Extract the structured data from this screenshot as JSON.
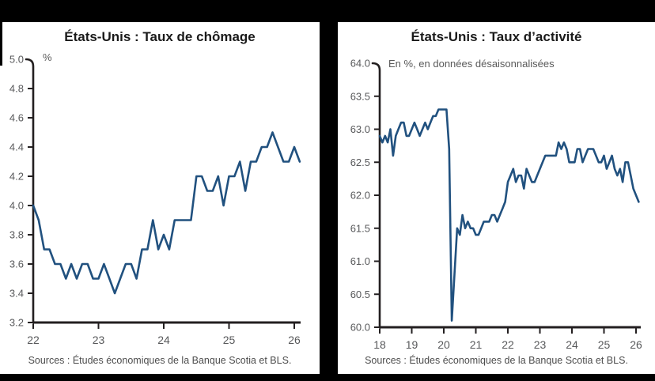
{
  "window": {
    "background": "#000000",
    "panel_background": "#ffffff",
    "axis_color": "#231f20",
    "label_color": "#58595b"
  },
  "chart_data": [
    {
      "type": "line",
      "title": "États-Unis : Taux de chômage",
      "subtitle": "%",
      "source": "Sources : Études économiques de la Banque Scotia et BLS.",
      "line_color": "#21517f",
      "grid": false,
      "legend": null,
      "ylim": [
        3.2,
        5.0
      ],
      "y_tick_labels": [
        "5.0",
        "4.8",
        "4.6",
        "4.4",
        "4.2",
        "4.0",
        "3.8",
        "3.6",
        "3.4",
        "3.2"
      ],
      "x_tick_labels": [
        "22",
        "23",
        "24",
        "25",
        "26"
      ],
      "frequency": "monthly",
      "start": "2022-01",
      "values": [
        4.0,
        3.9,
        3.7,
        3.7,
        3.6,
        3.6,
        3.5,
        3.6,
        3.5,
        3.6,
        3.6,
        3.5,
        3.5,
        3.6,
        3.5,
        3.4,
        3.5,
        3.6,
        3.6,
        3.5,
        3.7,
        3.7,
        3.9,
        3.7,
        3.8,
        3.7,
        3.9,
        3.9,
        3.9,
        3.9,
        4.2,
        4.2,
        4.1,
        4.1,
        4.2,
        4.0,
        4.2,
        4.2,
        4.3,
        4.1,
        4.3,
        4.3,
        4.4,
        4.4,
        4.5,
        4.4,
        4.3,
        4.3,
        4.4,
        4.3
      ]
    },
    {
      "type": "line",
      "title": "États-Unis : Taux d’activité",
      "subtitle": "En %, en données désaisonnalisées",
      "source": "Sources : Études économiques de la Banque Scotia et BLS.",
      "line_color": "#21517f",
      "grid": false,
      "legend": null,
      "ylim": [
        60.0,
        64.0
      ],
      "y_tick_labels": [
        "64.0",
        "63.5",
        "63.0",
        "62.5",
        "62.0",
        "61.5",
        "61.0",
        "60.5",
        "60.0"
      ],
      "x_tick_labels": [
        "18",
        "19",
        "20",
        "21",
        "22",
        "23",
        "24",
        "25",
        "26"
      ],
      "frequency": "monthly",
      "start": "2018-01",
      "values": [
        62.9,
        62.8,
        62.9,
        62.8,
        63.0,
        62.6,
        62.9,
        63.0,
        63.1,
        63.1,
        62.9,
        62.9,
        63.0,
        63.1,
        63.0,
        62.9,
        63.0,
        63.1,
        63.0,
        63.1,
        63.2,
        63.2,
        63.3,
        63.3,
        63.3,
        63.3,
        62.7,
        60.1,
        60.8,
        61.5,
        61.4,
        61.7,
        61.5,
        61.6,
        61.5,
        61.5,
        61.4,
        61.4,
        61.5,
        61.6,
        61.6,
        61.6,
        61.7,
        61.7,
        61.6,
        61.7,
        61.8,
        61.9,
        62.2,
        62.3,
        62.4,
        62.2,
        62.3,
        62.3,
        62.1,
        62.4,
        62.3,
        62.2,
        62.2,
        62.3,
        62.4,
        62.5,
        62.6,
        62.6,
        62.6,
        62.6,
        62.6,
        62.8,
        62.7,
        62.8,
        62.7,
        62.5,
        62.5,
        62.5,
        62.7,
        62.7,
        62.5,
        62.6,
        62.7,
        62.7,
        62.7,
        62.6,
        62.5,
        62.5,
        62.6,
        62.4,
        62.5,
        62.6,
        62.4,
        62.3,
        62.4,
        62.2,
        62.5,
        62.5,
        62.3,
        62.1,
        62.0,
        61.9
      ]
    }
  ]
}
